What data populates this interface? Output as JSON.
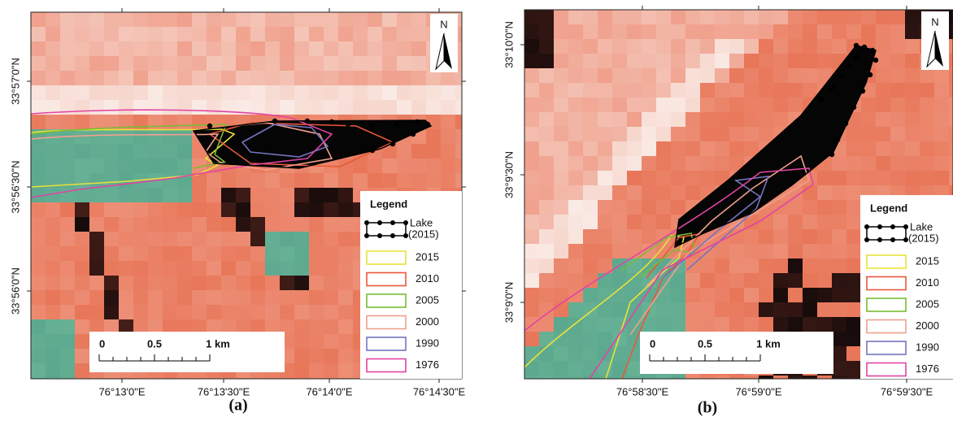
{
  "panels": [
    {
      "caption": "(a)",
      "north": "N",
      "y_labels": [
        "33°57'0\"N",
        "33°56'30\"N",
        "33°56'0\"N"
      ],
      "x_labels": [
        "76°13'0\"E",
        "76°13'30\"E",
        "76°14'0\"E",
        "76°14'30\"E"
      ],
      "scale": [
        "0",
        "0.5",
        "1 km"
      ],
      "legend": {
        "title": "Legend",
        "lake_label": [
          "Lake",
          "(2015)"
        ],
        "items": [
          {
            "label": "2015",
            "color": "#e8e23a"
          },
          {
            "label": "2010",
            "color": "#e8583a"
          },
          {
            "label": "2005",
            "color": "#78bc34"
          },
          {
            "label": "2000",
            "color": "#f0a08c"
          },
          {
            "label": "1990",
            "color": "#7474c0"
          },
          {
            "label": "1976",
            "color": "#e044a4"
          }
        ]
      }
    },
    {
      "caption": "(b)",
      "north": "N",
      "y_labels": [
        "33°10'0\"N",
        "33°9'30\"N",
        "33°9'0\"N"
      ],
      "x_labels": [
        "76°58'30\"E",
        "76°59'0\"E",
        "76°59'30\"E"
      ],
      "scale": [
        "0",
        "0.5",
        "1 km"
      ],
      "legend": {
        "title": "Legend",
        "lake_label": [
          "Lake",
          "(2015)"
        ],
        "items": [
          {
            "label": "2015",
            "color": "#e8e23a"
          },
          {
            "label": "2010",
            "color": "#e8583a"
          },
          {
            "label": "2005",
            "color": "#78bc34"
          },
          {
            "label": "2000",
            "color": "#f0a08c"
          },
          {
            "label": "1990",
            "color": "#7474c0"
          },
          {
            "label": "1976",
            "color": "#e044a4"
          }
        ]
      }
    }
  ]
}
